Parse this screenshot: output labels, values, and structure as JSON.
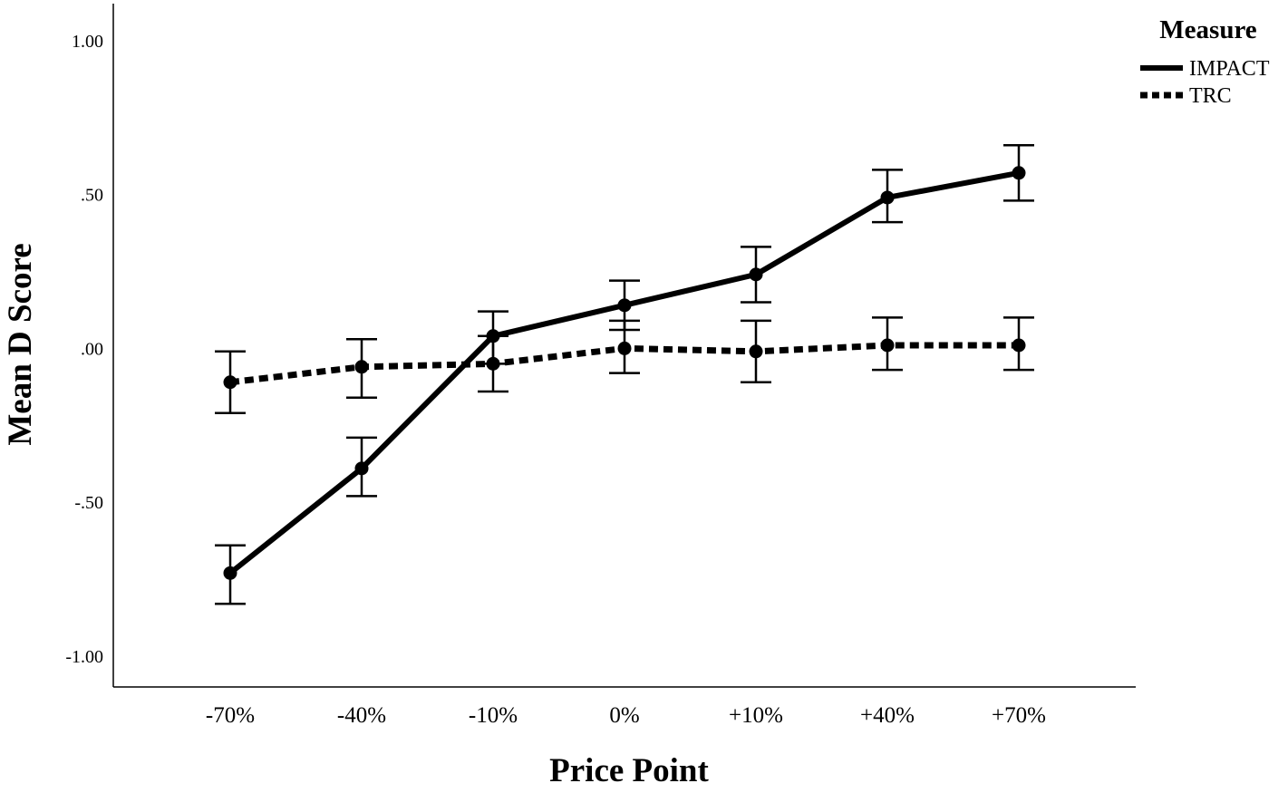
{
  "chart_data": {
    "type": "line",
    "xlabel": "Price Point",
    "ylabel": "Mean D Score",
    "categories": [
      "-70%",
      "-40%",
      "-10%",
      "0%",
      "+10%",
      "+40%",
      "+70%"
    ],
    "ylim": [
      -1.1,
      1.12
    ],
    "yticks": [
      1.0,
      0.5,
      0.0,
      -0.5,
      -1.0
    ],
    "ytick_labels": [
      "1.00",
      ".50",
      ".00",
      "-.50",
      "-1.00"
    ],
    "grid": false,
    "legend": {
      "title": "Measure",
      "position": "top-right"
    },
    "series": [
      {
        "name": "IMPACT",
        "style": "solid",
        "values": [
          -0.73,
          -0.39,
          0.04,
          0.14,
          0.24,
          0.49,
          0.57
        ],
        "error_low": [
          -0.83,
          -0.48,
          -0.05,
          0.06,
          0.15,
          0.41,
          0.48
        ],
        "error_high": [
          -0.64,
          -0.29,
          0.12,
          0.22,
          0.33,
          0.58,
          0.66
        ]
      },
      {
        "name": "TRC",
        "style": "dashed",
        "values": [
          -0.11,
          -0.06,
          -0.05,
          0.0,
          -0.01,
          0.01,
          0.01
        ],
        "error_low": [
          -0.21,
          -0.16,
          -0.14,
          -0.08,
          -0.11,
          -0.07,
          -0.07
        ],
        "error_high": [
          -0.01,
          0.03,
          0.04,
          0.09,
          0.09,
          0.1,
          0.1
        ]
      }
    ],
    "colors": {
      "line": "#000000",
      "background": "#ffffff"
    }
  }
}
